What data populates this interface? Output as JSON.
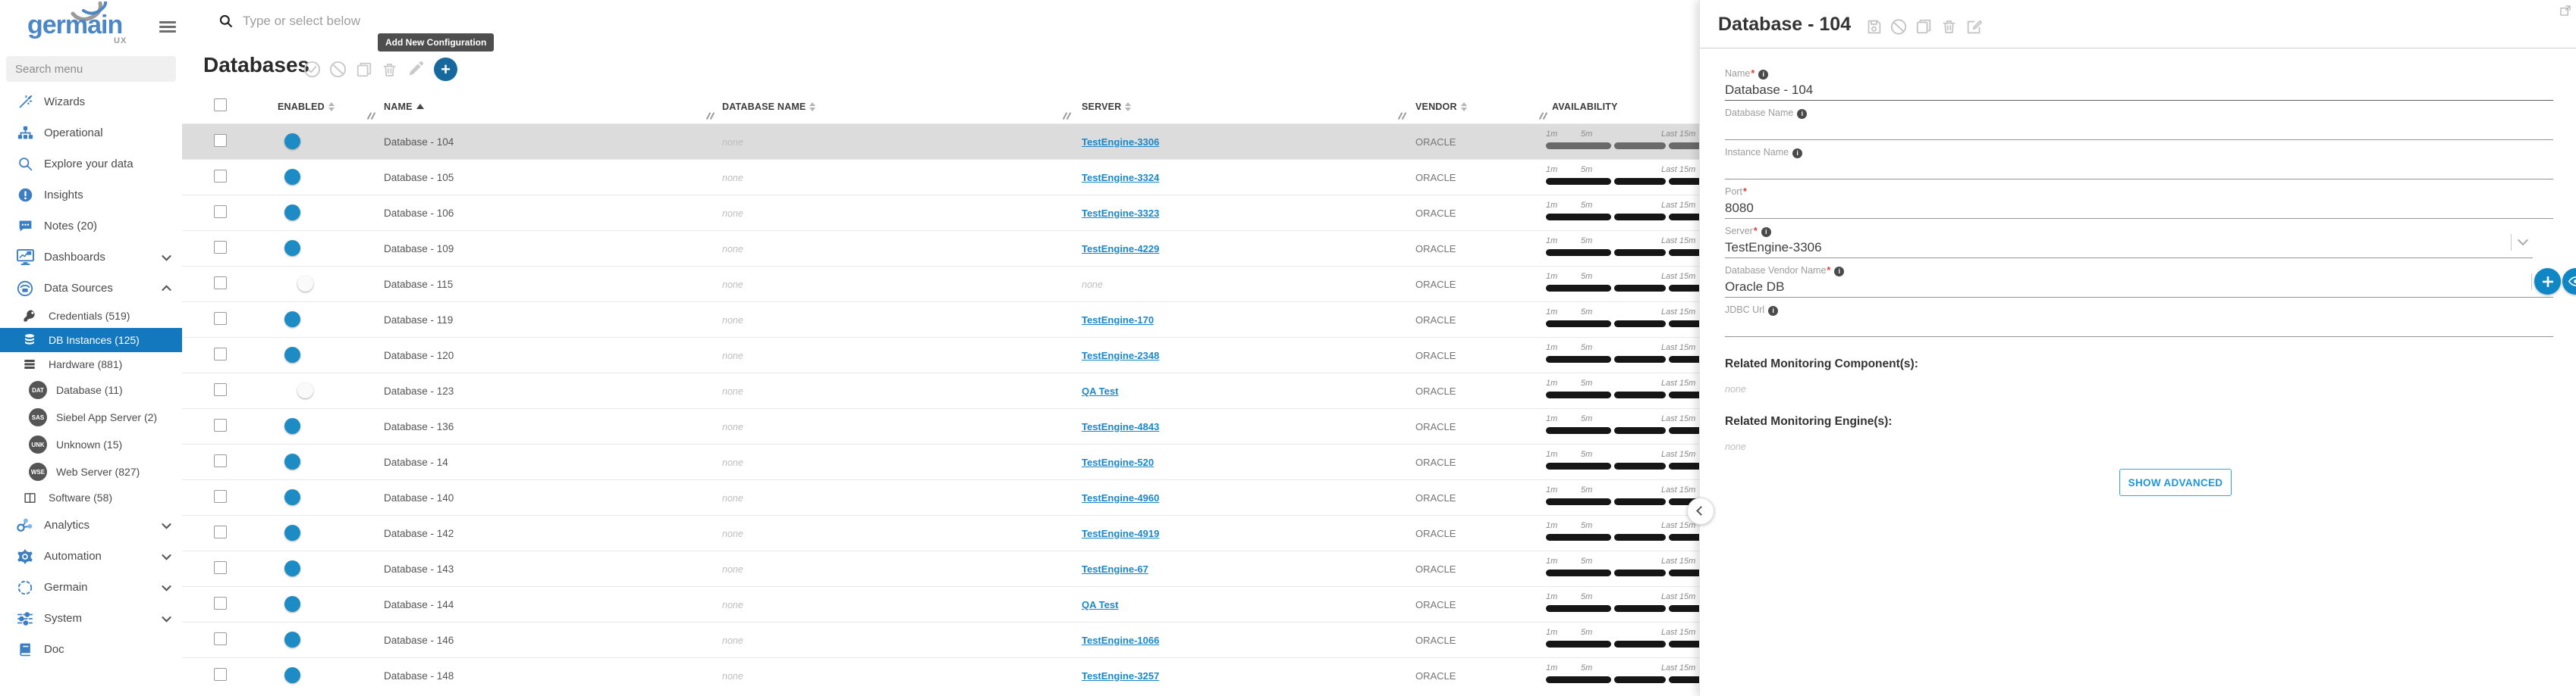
{
  "brand": {
    "logo_text": "germain",
    "logo_sub": "UX"
  },
  "sidebar": {
    "search_placeholder": "Search menu",
    "items": [
      {
        "label": "Wizards",
        "icon": "wand",
        "level": 0
      },
      {
        "label": "Operational",
        "icon": "sitemap",
        "level": 0
      },
      {
        "label": "Explore your data",
        "icon": "search",
        "level": 0
      },
      {
        "label": "Insights",
        "icon": "alert",
        "level": 0
      },
      {
        "label": "Notes (20)",
        "icon": "comment",
        "level": 0
      },
      {
        "label": "Dashboards",
        "icon": "dashboard",
        "level": 0,
        "chevron": "down"
      },
      {
        "label": "Data Sources",
        "icon": "datasource",
        "level": 0,
        "chevron": "up"
      },
      {
        "label": "Credentials (519)",
        "icon": "key",
        "level": 1
      },
      {
        "label": "DB Instances (125)",
        "icon": "database",
        "level": 1,
        "selected": true
      },
      {
        "label": "Hardware (881)",
        "icon": "server",
        "level": 1
      },
      {
        "label": "Database (11)",
        "badge": "DAT",
        "level": 2
      },
      {
        "label": "Siebel App Server (2)",
        "badge": "SAS",
        "level": 2
      },
      {
        "label": "Unknown (15)",
        "badge": "UNK",
        "level": 2
      },
      {
        "label": "Web Server (827)",
        "badge": "WSE",
        "level": 2
      },
      {
        "label": "Software (58)",
        "icon": "columns",
        "level": 1
      },
      {
        "label": "Analytics",
        "icon": "analytics",
        "level": 0,
        "chevron": "down"
      },
      {
        "label": "Automation",
        "icon": "gear",
        "level": 0,
        "chevron": "down"
      },
      {
        "label": "Germain",
        "icon": "dashedcircle",
        "level": 0,
        "chevron": "down"
      },
      {
        "label": "System",
        "icon": "sliders",
        "level": 0,
        "chevron": "down"
      },
      {
        "label": "Doc",
        "icon": "book",
        "level": 0
      }
    ]
  },
  "topbar": {
    "search_placeholder": "Type or select below"
  },
  "main": {
    "title": "Databases",
    "tooltip": "Add New Configuration",
    "toolbar_icons": [
      "approve",
      "disable",
      "copy",
      "delete",
      "edit",
      "add"
    ],
    "table": {
      "columns": {
        "enabled": "ENABLED",
        "name": "NAME",
        "database_name": "DATABASE NAME",
        "server": "SERVER",
        "vendor": "VENDOR",
        "availability": "AVAILABILITY"
      },
      "availability_labels": [
        "1m",
        "5m",
        "Last 15m"
      ],
      "rows": [
        {
          "name": "Database - 104",
          "database_name": "none",
          "server": "TestEngine-3306",
          "server_link": true,
          "vendor": "ORACLE",
          "enabled": true,
          "selected": true
        },
        {
          "name": "Database - 105",
          "database_name": "none",
          "server": "TestEngine-3324",
          "server_link": true,
          "vendor": "ORACLE",
          "enabled": true,
          "selected": false
        },
        {
          "name": "Database - 106",
          "database_name": "none",
          "server": "TestEngine-3323",
          "server_link": true,
          "vendor": "ORACLE",
          "enabled": true,
          "selected": false
        },
        {
          "name": "Database - 109",
          "database_name": "none",
          "server": "TestEngine-4229",
          "server_link": true,
          "vendor": "ORACLE",
          "enabled": true,
          "selected": false
        },
        {
          "name": "Database - 115",
          "database_name": "none",
          "server": "none",
          "server_link": false,
          "vendor": "ORACLE",
          "enabled": false,
          "selected": false
        },
        {
          "name": "Database - 119",
          "database_name": "none",
          "server": "TestEngine-170",
          "server_link": true,
          "vendor": "ORACLE",
          "enabled": true,
          "selected": false
        },
        {
          "name": "Database - 120",
          "database_name": "none",
          "server": "TestEngine-2348",
          "server_link": true,
          "vendor": "ORACLE",
          "enabled": true,
          "selected": false
        },
        {
          "name": "Database - 123",
          "database_name": "none",
          "server": "QA Test",
          "server_link": true,
          "vendor": "ORACLE",
          "enabled": false,
          "selected": false
        },
        {
          "name": "Database - 136",
          "database_name": "none",
          "server": "TestEngine-4843",
          "server_link": true,
          "vendor": "ORACLE",
          "enabled": true,
          "selected": false
        },
        {
          "name": "Database - 14",
          "database_name": "none",
          "server": "TestEngine-520",
          "server_link": true,
          "vendor": "ORACLE",
          "enabled": true,
          "selected": false
        },
        {
          "name": "Database - 140",
          "database_name": "none",
          "server": "TestEngine-4960",
          "server_link": true,
          "vendor": "ORACLE",
          "enabled": true,
          "selected": false
        },
        {
          "name": "Database - 142",
          "database_name": "none",
          "server": "TestEngine-4919",
          "server_link": true,
          "vendor": "ORACLE",
          "enabled": true,
          "selected": false
        },
        {
          "name": "Database - 143",
          "database_name": "none",
          "server": "TestEngine-67",
          "server_link": true,
          "vendor": "ORACLE",
          "enabled": true,
          "selected": false
        },
        {
          "name": "Database - 144",
          "database_name": "none",
          "server": "QA Test",
          "server_link": true,
          "vendor": "ORACLE",
          "enabled": true,
          "selected": false
        },
        {
          "name": "Database - 146",
          "database_name": "none",
          "server": "TestEngine-1066",
          "server_link": true,
          "vendor": "ORACLE",
          "enabled": true,
          "selected": false
        },
        {
          "name": "Database - 148",
          "database_name": "none",
          "server": "TestEngine-3257",
          "server_link": true,
          "vendor": "ORACLE",
          "enabled": true,
          "selected": false
        }
      ]
    }
  },
  "panel": {
    "title": "Database - 104",
    "header_icons": [
      "save",
      "disable",
      "copy",
      "delete",
      "edit"
    ],
    "fields": [
      {
        "label": "Name",
        "required": true,
        "info": true,
        "value": "Database - 104",
        "dropdown": false,
        "actions": false
      },
      {
        "label": "Database Name",
        "required": false,
        "info": true,
        "value": "",
        "dropdown": false,
        "actions": false
      },
      {
        "label": "Instance Name",
        "required": false,
        "info": true,
        "value": "",
        "dropdown": false,
        "actions": false
      },
      {
        "label": "Port",
        "required": true,
        "info": false,
        "value": "8080",
        "dropdown": false,
        "actions": false
      },
      {
        "label": "Server",
        "required": true,
        "info": true,
        "value": "TestEngine-3306",
        "dropdown": true,
        "actions": true
      },
      {
        "label": "Database Vendor Name",
        "required": true,
        "info": true,
        "value": "Oracle DB",
        "dropdown": true,
        "actions": false
      },
      {
        "label": "JDBC Url",
        "required": false,
        "info": true,
        "value": "",
        "dropdown": false,
        "actions": false
      }
    ],
    "sections": [
      {
        "heading": "Related Monitoring Component(s):",
        "value": "none"
      },
      {
        "heading": "Related Monitoring Engine(s):",
        "value": "none"
      }
    ],
    "show_advanced_label": "SHOW ADVANCED"
  }
}
